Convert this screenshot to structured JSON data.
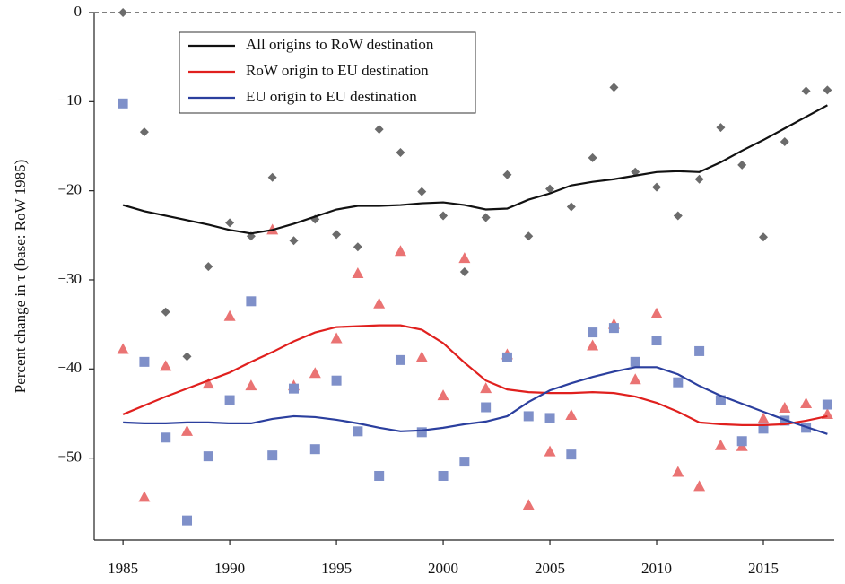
{
  "chart_data": {
    "type": "line",
    "y_label": "Percent change in τ (base: RoW 1985)",
    "x": [
      1985,
      1986,
      1987,
      1988,
      1989,
      1990,
      1991,
      1992,
      1993,
      1994,
      1995,
      1996,
      1997,
      1998,
      1999,
      2000,
      2001,
      2002,
      2003,
      2004,
      2005,
      2006,
      2007,
      2008,
      2009,
      2010,
      2011,
      2012,
      2013,
      2014,
      2015,
      2016,
      2017,
      2018
    ],
    "xlim": [
      1983.65,
      2018.32
    ],
    "xticks": [
      1985,
      1990,
      1995,
      2000,
      2005,
      2010,
      2015
    ],
    "ylim": [
      -59.2,
      0
    ],
    "yticks": [
      {
        "value": -50,
        "label": "−50"
      },
      {
        "value": -40,
        "label": "−40"
      },
      {
        "value": -30,
        "label": "−30"
      },
      {
        "value": -20,
        "label": "−20"
      },
      {
        "value": -10,
        "label": "−10"
      },
      0
    ],
    "hline": 0,
    "legend": "upper left",
    "series": [
      {
        "marker": "diamond",
        "color": "#6b6b6b",
        "values": [
          0,
          -13.4,
          -33.6,
          -38.6,
          -28.5,
          -23.6,
          -25.1,
          -18.5,
          -25.6,
          -23.2,
          -24.9,
          -26.3,
          -13.1,
          -15.7,
          -20.1,
          -22.8,
          -29.1,
          -23.0,
          -18.2,
          -25.1,
          -19.8,
          -21.8,
          -16.3,
          -8.4,
          -17.9,
          -19.6,
          -22.8,
          -18.7,
          -12.9,
          -17.1,
          -25.2,
          -14.5,
          -8.8,
          -8.7
        ]
      },
      {
        "marker": "triangle",
        "color": "#ea7373",
        "values": [
          -37.8,
          -54.4,
          -39.7,
          -47.0,
          -41.7,
          -34.1,
          -41.9,
          -24.4,
          -41.9,
          -40.5,
          -36.6,
          -29.3,
          -32.7,
          -26.8,
          -38.7,
          -43.0,
          -27.6,
          -42.2,
          -38.4,
          -55.3,
          -49.3,
          -45.2,
          -37.4,
          -35.0,
          -41.2,
          -33.8,
          -51.6,
          -53.2,
          -48.6,
          -48.7,
          -45.6,
          -44.4,
          -43.9,
          -45.1
        ]
      },
      {
        "marker": "square",
        "color": "#7f90c9",
        "values": [
          -10.2,
          -39.2,
          -47.7,
          -57.0,
          -49.8,
          -43.5,
          -32.4,
          -49.7,
          -42.2,
          -49.0,
          -41.3,
          -47.0,
          -52.0,
          -39.0,
          -47.1,
          -52.0,
          -50.4,
          -44.3,
          -38.7,
          -45.3,
          -45.5,
          -49.6,
          -35.9,
          -35.4,
          -39.2,
          -36.8,
          -41.5,
          -38.0,
          -43.5,
          -48.1,
          -46.7,
          -45.8,
          -46.6,
          -44.0
        ]
      },
      {
        "name": "All origins to RoW destination",
        "color": "#111111",
        "values": [
          -21.6,
          -22.3,
          -22.8,
          -23.3,
          -23.8,
          -24.4,
          -24.8,
          -24.4,
          -23.7,
          -22.9,
          -22.1,
          -21.7,
          -21.7,
          -21.6,
          -21.4,
          -21.3,
          -21.6,
          -22.1,
          -22.0,
          -21.0,
          -20.3,
          -19.4,
          -19.0,
          -18.7,
          -18.3,
          -17.9,
          -17.8,
          -17.9,
          -16.8,
          -15.5,
          -14.3,
          -13.0,
          -11.7,
          -10.4
        ]
      },
      {
        "name": "RoW origin to EU destination",
        "color": "#e0201e",
        "values": [
          -45.1,
          -44.1,
          -43.1,
          -42.2,
          -41.3,
          -40.4,
          -39.2,
          -38.1,
          -36.9,
          -35.9,
          -35.3,
          -35.2,
          -35.1,
          -35.1,
          -35.6,
          -37.1,
          -39.3,
          -41.3,
          -42.3,
          -42.6,
          -42.7,
          -42.7,
          -42.6,
          -42.7,
          -43.1,
          -43.8,
          -44.8,
          -46.0,
          -46.2,
          -46.3,
          -46.3,
          -46.2,
          -45.8,
          -45.3
        ]
      },
      {
        "name": "EU origin to EU destination",
        "color": "#2b3f9e",
        "values": [
          -46.0,
          -46.1,
          -46.1,
          -46.0,
          -46.0,
          -46.1,
          -46.1,
          -45.6,
          -45.3,
          -45.4,
          -45.7,
          -46.1,
          -46.6,
          -47.0,
          -46.9,
          -46.6,
          -46.2,
          -45.9,
          -45.3,
          -43.7,
          -42.4,
          -41.6,
          -40.9,
          -40.3,
          -39.8,
          -39.8,
          -40.6,
          -41.9,
          -43.0,
          -43.9,
          -44.8,
          -45.7,
          -46.5,
          -47.3
        ]
      }
    ]
  }
}
